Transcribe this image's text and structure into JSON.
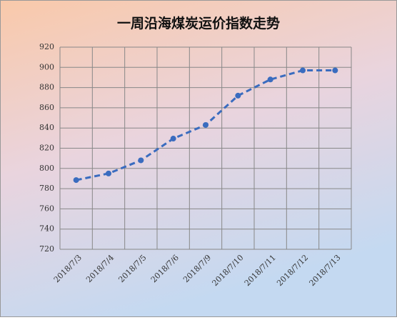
{
  "chart_data": {
    "type": "line",
    "title": "一周沿海煤炭运价指数走势",
    "categories": [
      "2018/7/3",
      "2018/7/4",
      "2018/7/5",
      "2018/7/6",
      "2018/7/9",
      "2018/7/10",
      "2018/7/11",
      "2018/7/12",
      "2018/7/13"
    ],
    "series": [
      {
        "name": "一周沿海煤炭运价指数",
        "color": "#3a6cbf",
        "values": [
          788.5,
          795,
          808,
          829.5,
          843,
          872,
          888,
          897,
          897
        ]
      }
    ],
    "ylim": [
      720,
      920
    ],
    "yticks": [
      720,
      740,
      760,
      780,
      800,
      820,
      840,
      860,
      880,
      900,
      920
    ],
    "grid": true,
    "legend": false
  }
}
